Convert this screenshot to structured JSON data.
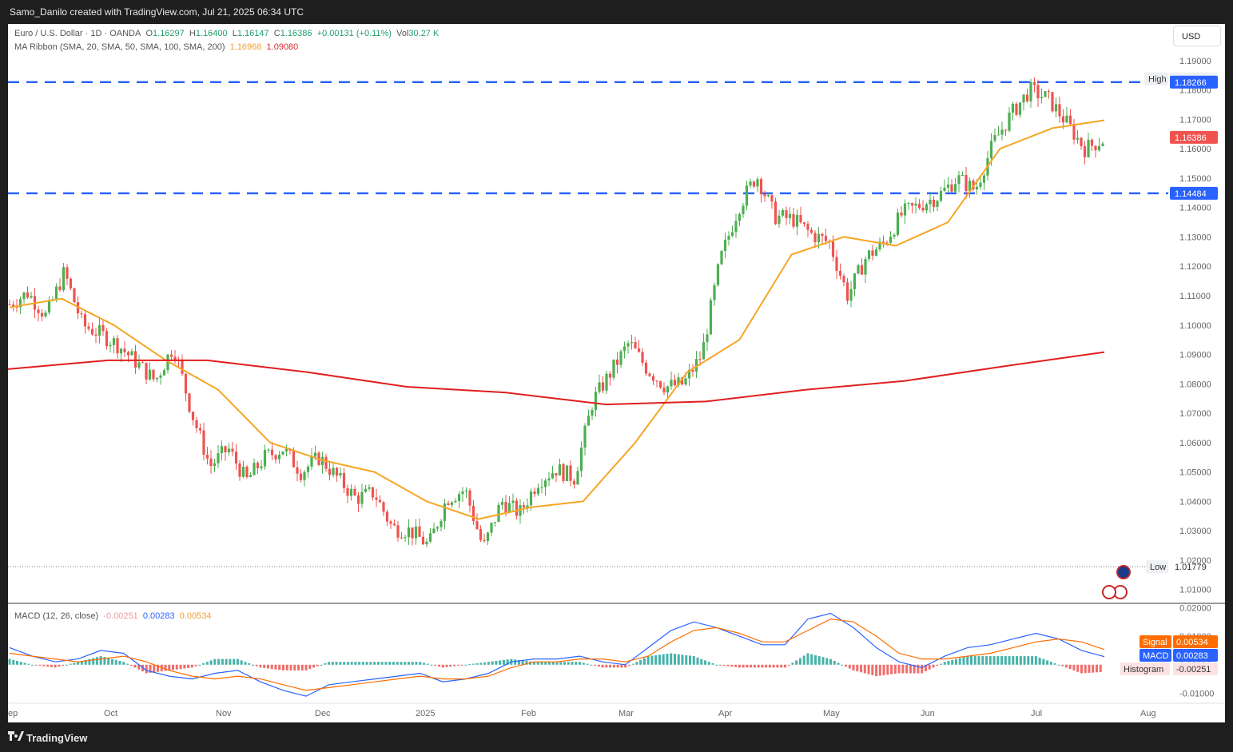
{
  "header": {
    "title": "Samo_Danilo created with TradingView.com, Jul 21, 2025 06:34 UTC"
  },
  "legend": {
    "symbol": "Euro / U.S. Dollar · 1D · OANDA",
    "o_label": "O",
    "o": "1.16297",
    "h_label": "H",
    "h": "1.16400",
    "l_label": "L",
    "l": "1.16147",
    "c_label": "C",
    "c": "1.16386",
    "change": "+0.00131 (+0.11%)",
    "vol_label": "Vol",
    "vol": "30.27 K",
    "ma_title": "MA Ribbon (SMA, 20, SMA, 50, SMA, 100, SMA, 200)",
    "ma1": "1.16968",
    "ma2": "1.09080",
    "macd_title": "MACD (12, 26, close)",
    "hist": "-0.00251",
    "macd": "0.00283",
    "signal": "0.00534"
  },
  "currency_button": "USD",
  "branding": {
    "name": "TradingView"
  },
  "colors": {
    "up": "#4caf50",
    "down": "#ef5350",
    "sma20": "#f5a623",
    "sma200": "#e01e1e",
    "level": "#2962ff",
    "macd": "#2962ff",
    "signal": "#ff6d00"
  },
  "chart_data": [
    {
      "type": "candlestick",
      "title": "Euro / U.S. Dollar · 1D · OANDA",
      "x_ticks": [
        "ep",
        "Oct",
        "Nov",
        "Dec",
        "2025",
        "Feb",
        "Mar",
        "Apr",
        "May",
        "Jun",
        "Jul",
        "Aug"
      ],
      "y_ticks": [
        "1.19000",
        "1.18000",
        "1.17000",
        "1.16000",
        "1.15000",
        "1.14000",
        "1.13000",
        "1.12000",
        "1.11000",
        "1.10000",
        "1.09000",
        "1.08000",
        "1.07000",
        "1.06000",
        "1.05000",
        "1.04000",
        "1.03000",
        "1.02000",
        "1.01000"
      ],
      "ylim": [
        1.0053,
        1.1943
      ],
      "levels": [
        {
          "label": "High",
          "value": "1.18299"
        },
        {
          "label": "",
          "value": "1.18266"
        },
        {
          "label": "",
          "value": "1.16386"
        },
        {
          "label": "",
          "value": "1.14484"
        },
        {
          "label": "Low",
          "value": "1.01779"
        }
      ],
      "close_path": [
        [
          "Sep",
          1.107
        ],
        [
          "Sep",
          1.111
        ],
        [
          "Sep",
          1.103
        ],
        [
          "Oct",
          1.118
        ],
        [
          "Oct",
          1.1
        ],
        [
          "Oct",
          1.097
        ],
        [
          "Oct",
          1.093
        ],
        [
          "Oct",
          1.087
        ],
        [
          "Oct",
          1.081
        ],
        [
          "Nov",
          1.093
        ],
        [
          "Nov",
          1.07
        ],
        [
          "Nov",
          1.052
        ],
        [
          "Nov",
          1.058
        ],
        [
          "Nov",
          1.047
        ],
        [
          "Nov",
          1.055
        ],
        [
          "Dec",
          1.058
        ],
        [
          "Dec",
          1.05
        ],
        [
          "Dec",
          1.055
        ],
        [
          "Dec",
          1.048
        ],
        [
          "Dec",
          1.041
        ],
        [
          "Dec",
          1.043
        ],
        [
          "2025",
          1.031
        ],
        [
          "2025",
          1.03
        ],
        [
          "2025",
          1.025
        ],
        [
          "2025",
          1.041
        ],
        [
          "2025",
          1.044
        ],
        [
          "Feb",
          1.024
        ],
        [
          "Feb",
          1.04
        ],
        [
          "Feb",
          1.036
        ],
        [
          "Feb",
          1.047
        ],
        [
          "Feb",
          1.051
        ],
        [
          "Mar",
          1.048
        ],
        [
          "Mar",
          1.074
        ],
        [
          "Mar",
          1.084
        ],
        [
          "Mar",
          1.094
        ],
        [
          "Mar",
          1.085
        ],
        [
          "Mar",
          1.079
        ],
        [
          "Apr",
          1.08
        ],
        [
          "Apr",
          1.09
        ],
        [
          "Apr",
          1.122
        ],
        [
          "Apr",
          1.14
        ],
        [
          "Apr",
          1.151
        ],
        [
          "Apr",
          1.137
        ],
        [
          "Apr",
          1.136
        ],
        [
          "May",
          1.131
        ],
        [
          "May",
          1.128
        ],
        [
          "May",
          1.11
        ],
        [
          "May",
          1.123
        ],
        [
          "May",
          1.128
        ],
        [
          "May",
          1.138
        ],
        [
          "Jun",
          1.141
        ],
        [
          "Jun",
          1.144
        ],
        [
          "Jun",
          1.15
        ],
        [
          "Jun",
          1.146
        ],
        [
          "Jun",
          1.162
        ],
        [
          "Jun",
          1.172
        ],
        [
          "Jul",
          1.18
        ],
        [
          "Jul",
          1.177
        ],
        [
          "Jul",
          1.169
        ],
        [
          "Jul",
          1.16
        ],
        [
          "Jul",
          1.163
        ]
      ],
      "sma20_path": [
        [
          "Sep",
          1.106
        ],
        [
          "Oct",
          1.109
        ],
        [
          "Oct",
          1.1
        ],
        [
          "Nov",
          1.088
        ],
        [
          "Nov",
          1.078
        ],
        [
          "Dec",
          1.06
        ],
        [
          "Dec",
          1.054
        ],
        [
          "2025",
          1.05
        ],
        [
          "2025",
          1.04
        ],
        [
          "Feb",
          1.034
        ],
        [
          "Feb",
          1.038
        ],
        [
          "Mar",
          1.04
        ],
        [
          "Mar",
          1.06
        ],
        [
          "Apr",
          1.084
        ],
        [
          "Apr",
          1.095
        ],
        [
          "May",
          1.124
        ],
        [
          "May",
          1.13
        ],
        [
          "Jun",
          1.127
        ],
        [
          "Jun",
          1.135
        ],
        [
          "Jul",
          1.16
        ],
        [
          "Jul",
          1.167
        ],
        [
          "Jul",
          1.16968
        ]
      ],
      "sma200_path": [
        [
          "Sep",
          1.085
        ],
        [
          "Oct",
          1.088
        ],
        [
          "Nov",
          1.088
        ],
        [
          "Dec",
          1.084
        ],
        [
          "2025",
          1.079
        ],
        [
          "Feb",
          1.077
        ],
        [
          "Mar",
          1.073
        ],
        [
          "Apr",
          1.074
        ],
        [
          "May",
          1.078
        ],
        [
          "Jun",
          1.081
        ],
        [
          "Jul",
          1.086
        ],
        [
          "Jul",
          1.0908
        ]
      ]
    },
    {
      "type": "line",
      "title": "MACD (12, 26, close)",
      "y_ticks": [
        "0.02000",
        "0.01000",
        "0.00000",
        "-0.01000"
      ],
      "ylim": [
        -0.0135,
        0.0215
      ],
      "series": [
        {
          "name": "Signal",
          "value": "0.00534"
        },
        {
          "name": "MACD",
          "value": "0.00283"
        },
        {
          "name": "Histogram",
          "value": "-0.00251"
        }
      ],
      "macd_path": [
        0.006,
        0.003,
        0.001,
        0.002,
        0.005,
        0.004,
        -0.002,
        -0.004,
        -0.005,
        -0.003,
        -0.002,
        -0.006,
        -0.009,
        -0.011,
        -0.007,
        -0.006,
        -0.005,
        -0.004,
        -0.003,
        -0.006,
        -0.005,
        -0.003,
        0.001,
        0.002,
        0.002,
        0.003,
        0.001,
        0.0,
        0.006,
        0.012,
        0.015,
        0.013,
        0.01,
        0.007,
        0.007,
        0.016,
        0.018,
        0.013,
        0.006,
        0.001,
        -0.001,
        0.003,
        0.006,
        0.007,
        0.009,
        0.011,
        0.009,
        0.005,
        0.00283
      ],
      "signal_path": [
        0.004,
        0.003,
        0.002,
        0.001,
        0.002,
        0.003,
        0.001,
        -0.002,
        -0.004,
        -0.005,
        -0.004,
        -0.005,
        -0.007,
        -0.009,
        -0.008,
        -0.007,
        -0.006,
        -0.005,
        -0.004,
        -0.005,
        -0.005,
        -0.004,
        -0.001,
        0.001,
        0.001,
        0.002,
        0.002,
        0.001,
        0.003,
        0.008,
        0.012,
        0.013,
        0.011,
        0.008,
        0.008,
        0.012,
        0.016,
        0.015,
        0.01,
        0.004,
        0.002,
        0.002,
        0.003,
        0.004,
        0.006,
        0.008,
        0.009,
        0.008,
        0.00534
      ]
    }
  ]
}
